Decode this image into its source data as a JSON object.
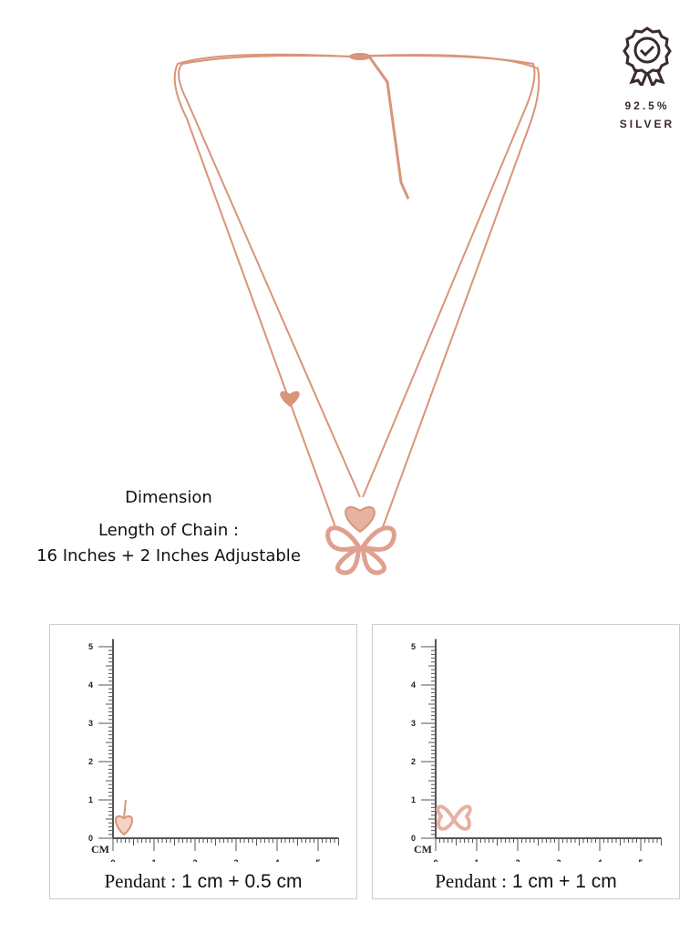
{
  "badge": {
    "icon": "rosette-check-icon",
    "purity": "92.5%",
    "metal": "SILVER",
    "color": "#3a2a33"
  },
  "dimension": {
    "title": "Dimension",
    "length_label": "Length of Chain :",
    "length_value": "16 Inches + 2 Inches Adjustable"
  },
  "product": {
    "metal_color": "#d9947a"
  },
  "panels": [
    {
      "pendant": "heart",
      "caption_label": "Pendant :",
      "caption_value": "1 cm + 0.5 cm",
      "unit": "CM",
      "ticks": [
        "0",
        "1",
        "2",
        "3",
        "4",
        "5"
      ]
    },
    {
      "pendant": "butterfly",
      "caption_label": "Pendant :",
      "caption_value": "1 cm + 1 cm",
      "unit": "CM",
      "ticks": [
        "0",
        "1",
        "2",
        "3",
        "4",
        "5"
      ]
    }
  ]
}
